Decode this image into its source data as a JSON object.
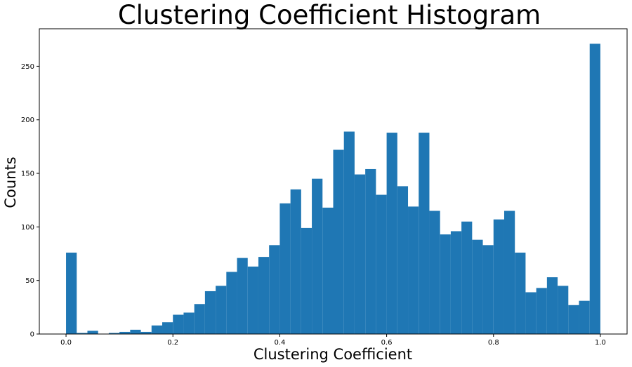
{
  "chart_data": {
    "type": "bar",
    "title": "Clustering Coefficient Histogram",
    "xlabel": "Clustering Coefficient",
    "ylabel": "Counts",
    "xlim": [
      -0.05,
      1.05
    ],
    "ylim": [
      0,
      285
    ],
    "bar_color": "#1f77b4",
    "grid": false,
    "bins": 50,
    "bin_range": [
      0,
      1
    ],
    "values": [
      76,
      1,
      3,
      0,
      1,
      2,
      4,
      2,
      8,
      11,
      18,
      20,
      28,
      40,
      45,
      58,
      71,
      63,
      72,
      83,
      122,
      135,
      99,
      145,
      118,
      172,
      189,
      149,
      154,
      130,
      188,
      138,
      119,
      188,
      115,
      93,
      96,
      105,
      88,
      83,
      107,
      115,
      76,
      39,
      43,
      53,
      45,
      27,
      31,
      271
    ],
    "x_ticks": [
      {
        "value": 0.0,
        "label": "0.0"
      },
      {
        "value": 0.2,
        "label": "0.2"
      },
      {
        "value": 0.4,
        "label": "0.4"
      },
      {
        "value": 0.6,
        "label": "0.6"
      },
      {
        "value": 0.8,
        "label": "0.8"
      },
      {
        "value": 1.0,
        "label": "1.0"
      }
    ],
    "y_ticks": [
      {
        "value": 0,
        "label": "0"
      },
      {
        "value": 50,
        "label": "50"
      },
      {
        "value": 100,
        "label": "100"
      },
      {
        "value": 150,
        "label": "150"
      },
      {
        "value": 200,
        "label": "200"
      },
      {
        "value": 250,
        "label": "250"
      }
    ]
  }
}
